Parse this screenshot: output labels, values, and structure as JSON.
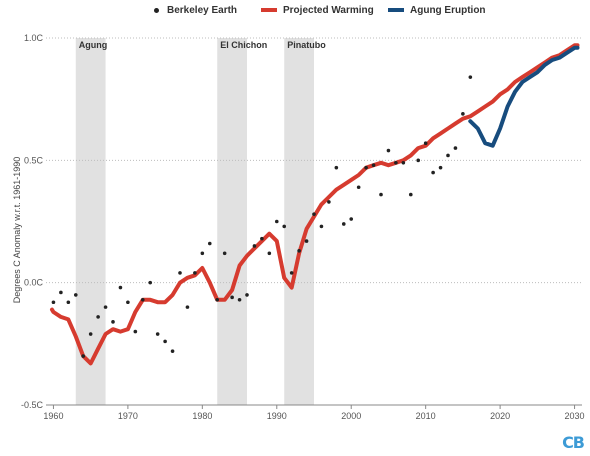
{
  "chart_data": {
    "type": "line",
    "title": "",
    "xlabel": "",
    "ylabel": "Degrees C Anomaly w.r.t. 1961-1990",
    "xlim": [
      1959,
      2031
    ],
    "ylim": [
      -0.5,
      1.0
    ],
    "x_ticks": [
      1960,
      1970,
      1980,
      1990,
      2000,
      2010,
      2020,
      2030
    ],
    "y_ticks": [
      {
        "value": 1.0,
        "label": "1.0C"
      },
      {
        "value": 0.5,
        "label": "0.5C"
      },
      {
        "value": 0.0,
        "label": "0.0C"
      },
      {
        "value": -0.5,
        "label": "-0.5C"
      }
    ],
    "grid": "horizontal dotted",
    "legend_position": "top",
    "eruptions": [
      {
        "label": "Agung",
        "start": 1963,
        "end": 1967
      },
      {
        "label": "El Chichon",
        "start": 1982,
        "end": 1986
      },
      {
        "label": "Pinatubo",
        "start": 1991,
        "end": 1995
      }
    ],
    "series": [
      {
        "name": "Berkeley Earth",
        "style": "points",
        "color": "#222222",
        "x": [
          1960,
          1961,
          1962,
          1963,
          1964,
          1965,
          1966,
          1967,
          1968,
          1969,
          1970,
          1971,
          1972,
          1973,
          1974,
          1975,
          1976,
          1977,
          1978,
          1979,
          1980,
          1981,
          1982,
          1983,
          1984,
          1985,
          1986,
          1987,
          1988,
          1989,
          1990,
          1991,
          1992,
          1993,
          1994,
          1995,
          1996,
          1997,
          1998,
          1999,
          2000,
          2001,
          2002,
          2003,
          2004,
          2005,
          2006,
          2007,
          2008,
          2009,
          2010,
          2011,
          2012,
          2013,
          2014,
          2015,
          2016
        ],
        "y": [
          -0.08,
          -0.04,
          -0.08,
          -0.05,
          -0.3,
          -0.21,
          -0.14,
          -0.1,
          -0.16,
          -0.02,
          -0.08,
          -0.2,
          -0.07,
          0.0,
          -0.21,
          -0.24,
          -0.28,
          0.04,
          -0.1,
          0.04,
          0.12,
          0.16,
          -0.07,
          0.12,
          -0.06,
          -0.07,
          -0.05,
          0.15,
          0.18,
          0.12,
          0.25,
          0.23,
          0.04,
          0.13,
          0.17,
          0.28,
          0.23,
          0.33,
          0.47,
          0.24,
          0.26,
          0.39,
          0.47,
          0.48,
          0.36,
          0.54,
          0.49,
          0.49,
          0.36,
          0.5,
          0.57,
          0.45,
          0.47,
          0.52,
          0.55,
          0.69,
          0.84
        ]
      },
      {
        "name": "Projected Warming",
        "style": "line",
        "color": "#d63b2f",
        "x": [
          1959.8,
          1960,
          1961,
          1962,
          1963,
          1964,
          1965,
          1966,
          1967,
          1968,
          1969,
          1970,
          1971,
          1972,
          1973,
          1974,
          1975,
          1976,
          1977,
          1978,
          1979,
          1980,
          1981,
          1982,
          1983,
          1984,
          1985,
          1986,
          1987,
          1988,
          1989,
          1990,
          1991,
          1992,
          1993,
          1994,
          1995,
          1996,
          1997,
          1998,
          1999,
          2000,
          2001,
          2002,
          2003,
          2004,
          2005,
          2006,
          2007,
          2008,
          2009,
          2010,
          2011,
          2012,
          2013,
          2014,
          2015,
          2016,
          2017,
          2018,
          2019,
          2020,
          2021,
          2022,
          2023,
          2024,
          2025,
          2026,
          2027,
          2028,
          2029,
          2030,
          2030.4
        ],
        "y": [
          -0.11,
          -0.12,
          -0.14,
          -0.15,
          -0.22,
          -0.3,
          -0.33,
          -0.27,
          -0.21,
          -0.19,
          -0.2,
          -0.19,
          -0.12,
          -0.07,
          -0.07,
          -0.08,
          -0.08,
          -0.05,
          0.0,
          0.02,
          0.03,
          0.06,
          0.0,
          -0.07,
          -0.07,
          -0.03,
          0.07,
          0.11,
          0.14,
          0.17,
          0.2,
          0.17,
          0.02,
          -0.02,
          0.12,
          0.22,
          0.27,
          0.32,
          0.35,
          0.38,
          0.4,
          0.42,
          0.44,
          0.47,
          0.48,
          0.49,
          0.48,
          0.49,
          0.5,
          0.52,
          0.55,
          0.56,
          0.59,
          0.61,
          0.63,
          0.65,
          0.67,
          0.68,
          0.7,
          0.72,
          0.74,
          0.77,
          0.79,
          0.82,
          0.84,
          0.86,
          0.88,
          0.9,
          0.92,
          0.93,
          0.95,
          0.97,
          0.97
        ]
      },
      {
        "name": "Agung Eruption",
        "style": "line",
        "color": "#174c7e",
        "x": [
          2016,
          2017,
          2018,
          2019,
          2020,
          2021,
          2022,
          2023,
          2024,
          2025,
          2026,
          2027,
          2028,
          2029,
          2030,
          2030.4
        ],
        "y": [
          0.66,
          0.63,
          0.57,
          0.56,
          0.63,
          0.72,
          0.78,
          0.82,
          0.84,
          0.86,
          0.89,
          0.91,
          0.92,
          0.94,
          0.96,
          0.96
        ]
      }
    ]
  },
  "brand": "CB"
}
